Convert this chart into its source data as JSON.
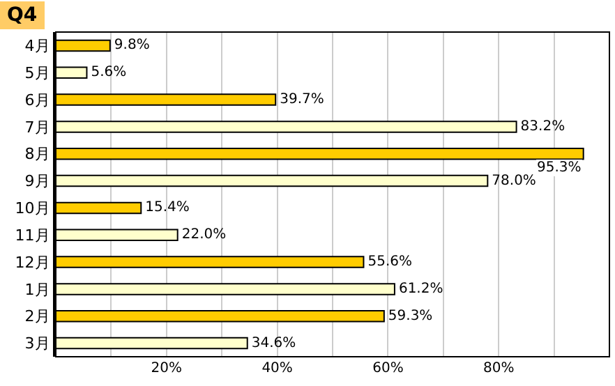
{
  "chart_data": {
    "type": "bar",
    "orientation": "horizontal",
    "title": "Q4",
    "categories": [
      "4月",
      "5月",
      "6月",
      "7月",
      "8月",
      "9月",
      "10月",
      "11月",
      "12月",
      "1月",
      "2月",
      "3月"
    ],
    "values": [
      9.8,
      5.6,
      39.7,
      83.2,
      95.3,
      78.0,
      15.4,
      22.0,
      55.6,
      61.2,
      59.3,
      34.6
    ],
    "value_labels": [
      "9.8%",
      "5.6%",
      "39.7%",
      "83.2%",
      "95.3%",
      "78.0%",
      "15.4%",
      "22.0%",
      "55.6%",
      "61.2%",
      "59.3%",
      "34.6%"
    ],
    "colors": [
      "#ffcc00",
      "#ffffcc",
      "#ffcc00",
      "#ffffcc",
      "#ffcc00",
      "#ffffcc",
      "#ffcc00",
      "#ffffcc",
      "#ffcc00",
      "#ffffcc",
      "#ffcc00",
      "#ffffcc"
    ],
    "xlim": [
      0,
      100
    ],
    "xticks": [
      {
        "value": 10,
        "label": null
      },
      {
        "value": 20,
        "label": "20%"
      },
      {
        "value": 30,
        "label": null
      },
      {
        "value": 40,
        "label": "40%"
      },
      {
        "value": 50,
        "label": null
      },
      {
        "value": 60,
        "label": "60%"
      },
      {
        "value": 70,
        "label": null
      },
      {
        "value": 80,
        "label": "80%"
      },
      {
        "value": 90,
        "label": null
      }
    ],
    "grid": true
  }
}
